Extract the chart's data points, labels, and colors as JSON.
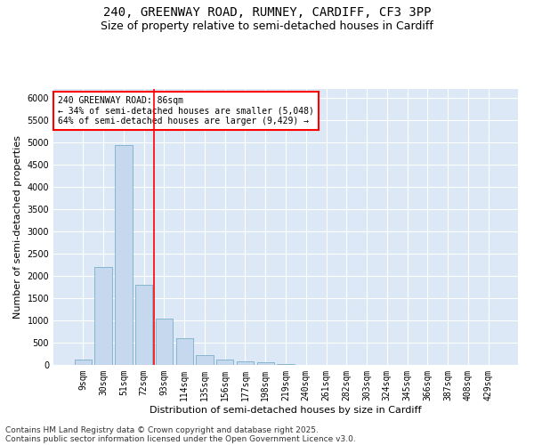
{
  "title_line1": "240, GREENWAY ROAD, RUMNEY, CARDIFF, CF3 3PP",
  "title_line2": "Size of property relative to semi-detached houses in Cardiff",
  "xlabel": "Distribution of semi-detached houses by size in Cardiff",
  "ylabel": "Number of semi-detached properties",
  "categories": [
    "9sqm",
    "30sqm",
    "51sqm",
    "72sqm",
    "93sqm",
    "114sqm",
    "135sqm",
    "156sqm",
    "177sqm",
    "198sqm",
    "219sqm",
    "240sqm",
    "261sqm",
    "282sqm",
    "303sqm",
    "324sqm",
    "345sqm",
    "366sqm",
    "387sqm",
    "408sqm",
    "429sqm"
  ],
  "values": [
    130,
    2200,
    4950,
    1800,
    1050,
    600,
    230,
    130,
    75,
    55,
    30,
    10,
    5,
    2,
    0,
    0,
    0,
    0,
    0,
    0,
    0
  ],
  "bar_color": "#c5d8ed",
  "bar_edge_color": "#7aafc8",
  "red_line_x": 3.5,
  "annotation_text": "240 GREENWAY ROAD: 86sqm\n← 34% of semi-detached houses are smaller (5,048)\n64% of semi-detached houses are larger (9,429) →",
  "ylim": [
    0,
    6200
  ],
  "yticks": [
    0,
    500,
    1000,
    1500,
    2000,
    2500,
    3000,
    3500,
    4000,
    4500,
    5000,
    5500,
    6000
  ],
  "footnote_line1": "Contains HM Land Registry data © Crown copyright and database right 2025.",
  "footnote_line2": "Contains public sector information licensed under the Open Government Licence v3.0.",
  "plot_bg_color": "#dce8f5",
  "title_fontsize": 10,
  "subtitle_fontsize": 9,
  "axis_label_fontsize": 8,
  "tick_fontsize": 7,
  "annot_fontsize": 7,
  "footnote_fontsize": 6.5
}
